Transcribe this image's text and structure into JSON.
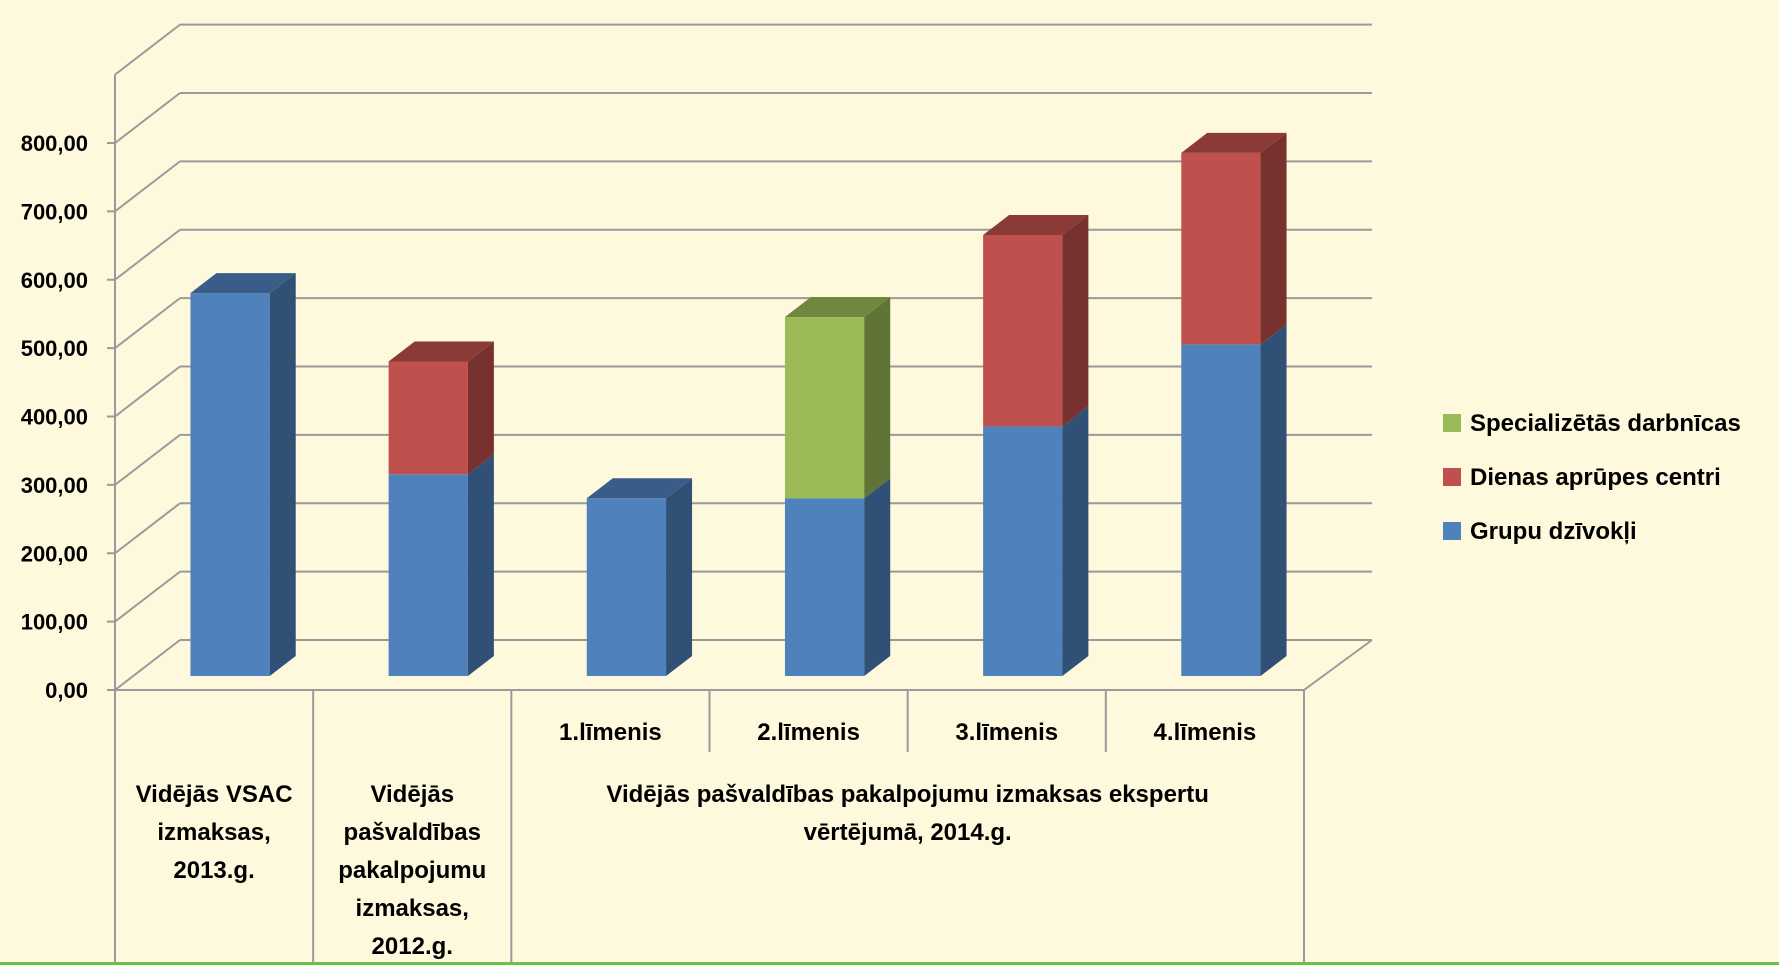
{
  "chart_data": {
    "type": "bar",
    "stacked": true,
    "three_d": true,
    "x": [
      "1",
      "2",
      "3",
      "4",
      "5",
      "6"
    ],
    "category_labels": {
      "level_labels": [
        "1.līmenis",
        "2.līmenis",
        "3.līmenis",
        "4.līmenis"
      ],
      "group_labels": [
        "Vidējās VSAC izmaksas, 2013.g.",
        "Vidējās pašvaldības pakalpojumu izmaksas, 2012.g.",
        "Vidējās pašvaldības pakalpojumu izmaksas ekspertu vērtējumā, 2014.g."
      ]
    },
    "series": [
      {
        "name": "Grupu dzīvokļi",
        "values": [
          560,
          295,
          260,
          260,
          365,
          485
        ],
        "color": "#4f81bd"
      },
      {
        "name": "Dienas aprūpes centri",
        "values": [
          0,
          165,
          0,
          0,
          280,
          280
        ],
        "color": "#c0504d"
      },
      {
        "name": "Specializētās darbnīcas",
        "values": [
          0,
          0,
          0,
          265,
          0,
          0
        ],
        "color": "#9bbb59"
      }
    ],
    "ylim": [
      0,
      800
    ],
    "yticks": [
      "0,00",
      "100,00",
      "200,00",
      "300,00",
      "400,00",
      "500,00",
      "600,00",
      "700,00",
      "800,00"
    ],
    "grid": true,
    "legend_position": "right",
    "background": "#fef8dc"
  }
}
